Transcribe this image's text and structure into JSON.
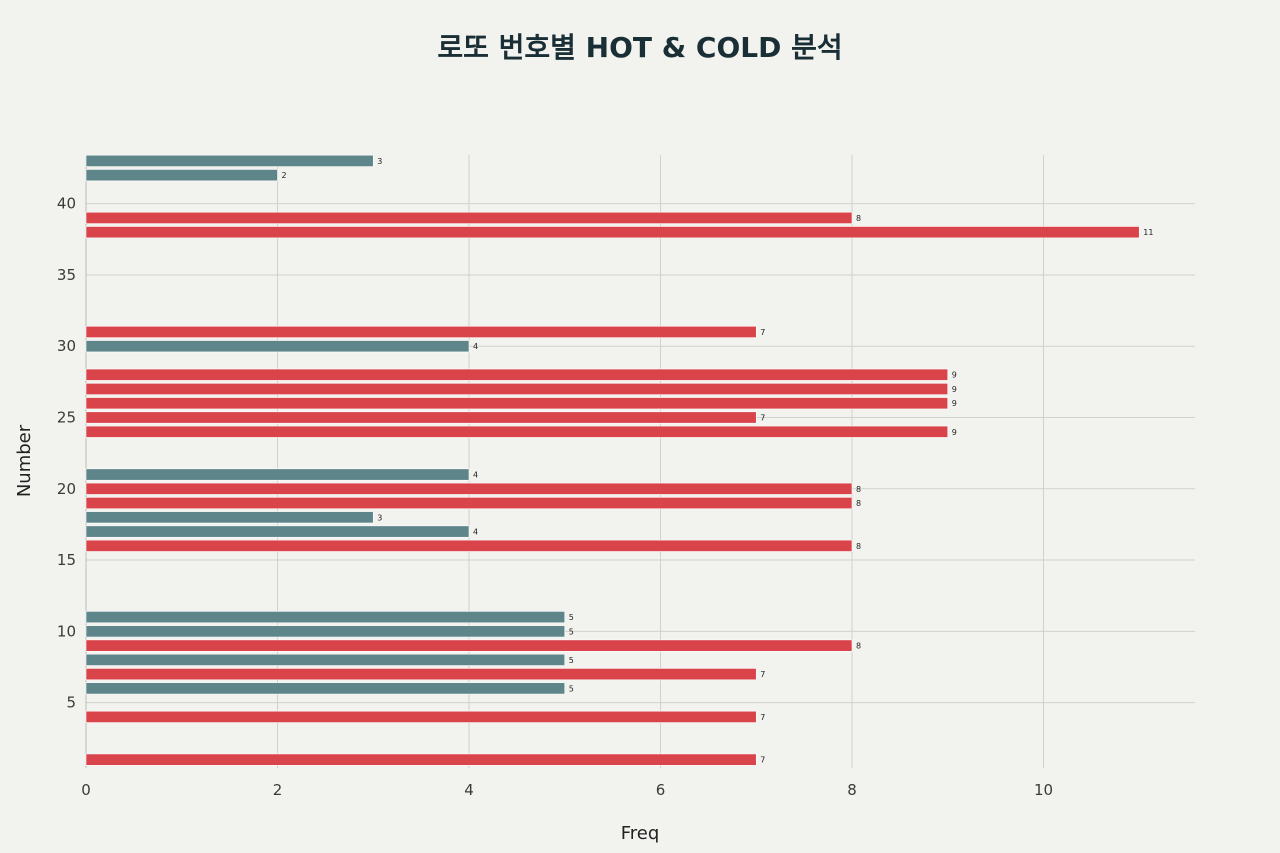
{
  "chart_data": {
    "type": "bar",
    "orientation": "horizontal",
    "title": "로또 번호별 HOT & COLD 분석",
    "xlabel": "Freq",
    "ylabel": "Number",
    "xlim": [
      0,
      11.6
    ],
    "ylim": [
      0.4,
      43.5
    ],
    "x_ticks": [
      0,
      2,
      4,
      6,
      8,
      10
    ],
    "y_ticks": [
      5,
      10,
      15,
      20,
      25,
      30,
      35,
      40
    ],
    "grid": true,
    "colors": {
      "hot": "#d9434a",
      "cold": "#5d858a"
    },
    "data": [
      {
        "number": 1,
        "freq": 7,
        "group": "hot"
      },
      {
        "number": 4,
        "freq": 7,
        "group": "hot"
      },
      {
        "number": 6,
        "freq": 5,
        "group": "cold"
      },
      {
        "number": 7,
        "freq": 7,
        "group": "hot"
      },
      {
        "number": 8,
        "freq": 5,
        "group": "cold"
      },
      {
        "number": 9,
        "freq": 8,
        "group": "hot"
      },
      {
        "number": 10,
        "freq": 5,
        "group": "cold"
      },
      {
        "number": 11,
        "freq": 5,
        "group": "cold"
      },
      {
        "number": 16,
        "freq": 8,
        "group": "hot"
      },
      {
        "number": 17,
        "freq": 4,
        "group": "cold"
      },
      {
        "number": 18,
        "freq": 3,
        "group": "cold"
      },
      {
        "number": 19,
        "freq": 8,
        "group": "hot"
      },
      {
        "number": 20,
        "freq": 8,
        "group": "hot"
      },
      {
        "number": 21,
        "freq": 4,
        "group": "cold"
      },
      {
        "number": 24,
        "freq": 9,
        "group": "hot"
      },
      {
        "number": 25,
        "freq": 7,
        "group": "hot"
      },
      {
        "number": 26,
        "freq": 9,
        "group": "hot"
      },
      {
        "number": 27,
        "freq": 9,
        "group": "hot"
      },
      {
        "number": 28,
        "freq": 9,
        "group": "hot"
      },
      {
        "number": 30,
        "freq": 4,
        "group": "cold"
      },
      {
        "number": 31,
        "freq": 7,
        "group": "hot"
      },
      {
        "number": 38,
        "freq": 11,
        "group": "hot"
      },
      {
        "number": 39,
        "freq": 8,
        "group": "hot"
      },
      {
        "number": 42,
        "freq": 2,
        "group": "cold"
      },
      {
        "number": 43,
        "freq": 3,
        "group": "cold"
      }
    ]
  }
}
